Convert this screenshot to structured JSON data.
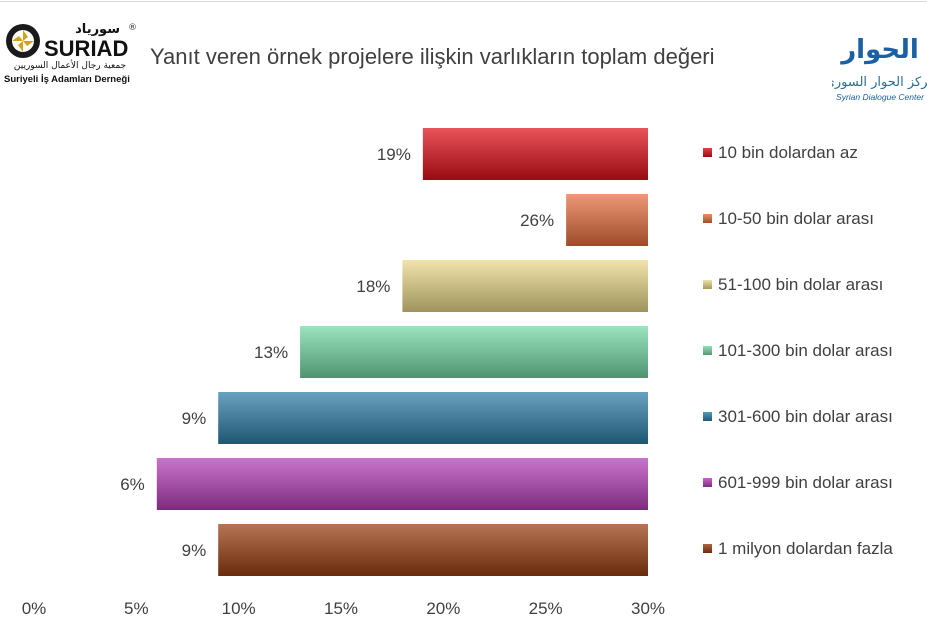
{
  "header": {
    "left_logo": {
      "arabic_name": "سورياد",
      "latin_name": "SURIAD",
      "arabic_subtitle": "جمعية رجال الأعمال السوريين",
      "subtitle": "Suriyeli İş Adamları Derneği",
      "mark": "®"
    },
    "right_logo": {
      "arabic_wordmark": "الحوار",
      "arabic_name": "مركز الحوار السوري",
      "latin_name": "Syrian Dialogue Center"
    }
  },
  "chart_data": {
    "type": "bar",
    "orientation": "horizontal",
    "title": "Yanıt veren örnek projelere ilişkin varlıkların toplam değeri",
    "categories": [
      "10 bin dolardan az",
      "10-50 bin dolar arası",
      "51-100 bin dolar arası",
      "101-300 bin dolar arası",
      "301-600 bin dolar arası",
      "601-999 bin dolar arası",
      "1 milyon dolardan fazla"
    ],
    "values": [
      19,
      26,
      18,
      13,
      9,
      6,
      9
    ],
    "data_labels": [
      "19%",
      "26%",
      "18%",
      "13%",
      "9%",
      "6%",
      "9%"
    ],
    "colors": [
      "#e0101a",
      "#e8703f",
      "#ead98a",
      "#74d9a6",
      "#2f7ea8",
      "#b63fba",
      "#9b3f12"
    ],
    "xlim": [
      0,
      30
    ],
    "x_ticks": [
      "0%",
      "5%",
      "10%",
      "15%",
      "20%",
      "25%",
      "30%"
    ],
    "x_axis_reversed": true,
    "grid": false,
    "legend_position": "right"
  }
}
